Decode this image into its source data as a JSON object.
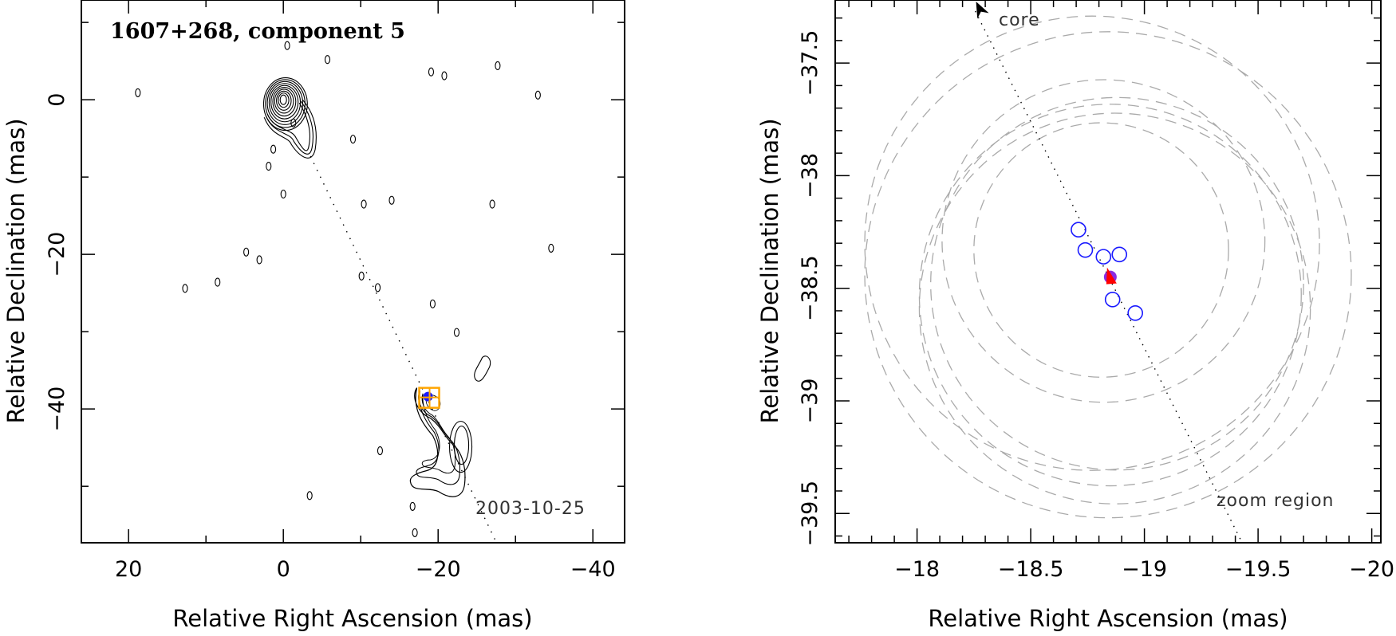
{
  "chart_data": [
    {
      "type": "contour",
      "title": "1607+268, component 5",
      "annotation": "2003-10-25",
      "xlabel": "Relative Right Ascension (mas)",
      "ylabel": "Relative Declination (mas)",
      "xlim": [
        26.1,
        -44.1
      ],
      "ylim": [
        -57.3,
        12.9
      ],
      "xticks": [
        20,
        0,
        -20,
        -40
      ],
      "xtick_labels": [
        "20",
        "0",
        "−20",
        "−40"
      ],
      "yticks": [
        0,
        -20,
        -40
      ],
      "ytick_labels": [
        "0",
        "−20",
        "−40"
      ],
      "minor_xticks": [
        10,
        -10,
        -30
      ],
      "minor_yticks": [
        10,
        -10,
        -30,
        -50
      ],
      "core": {
        "ra": 0,
        "dec": 0
      },
      "component": {
        "ra": -18.9,
        "dec": -38.5
      },
      "direction_line": {
        "from": [
          -3.5,
          -7.3
        ],
        "to": [
          -27.5,
          -57.2
        ]
      },
      "islands": [
        [
          -19.1,
          3.6
        ],
        [
          -27.7,
          4.4
        ],
        [
          -9.0,
          -5.1
        ],
        [
          -1.3,
          -3.0
        ],
        [
          -0.5,
          7.0
        ],
        [
          -5.7,
          5.2
        ],
        [
          -20.8,
          3.1
        ],
        [
          -32.9,
          0.6
        ],
        [
          18.8,
          0.9
        ],
        [
          1.3,
          -6.4
        ],
        [
          1.9,
          -8.6
        ],
        [
          0.0,
          -12.2
        ],
        [
          -10.4,
          -13.5
        ],
        [
          -14.0,
          -13.0
        ],
        [
          -27.0,
          -13.5
        ],
        [
          -34.6,
          -19.2
        ],
        [
          4.8,
          -19.7
        ],
        [
          3.1,
          -20.7
        ],
        [
          8.5,
          -23.6
        ],
        [
          12.7,
          -24.4
        ],
        [
          -10.1,
          -22.8
        ],
        [
          -12.2,
          -24.3
        ],
        [
          -19.3,
          -26.4
        ],
        [
          -22.4,
          -30.1
        ],
        [
          -12.5,
          -45.4
        ],
        [
          -3.4,
          -51.2
        ],
        [
          -16.7,
          -52.6
        ],
        [
          -17.0,
          -56.0
        ]
      ],
      "colors": {
        "contour": "#000000",
        "marker": "#1a1aff",
        "box": "#ffa500"
      }
    },
    {
      "type": "scatter",
      "xlabel": "Relative Right Ascension (mas)",
      "ylabel": "Relative Declination (mas)",
      "xlim": [
        -17.64,
        -20.04
      ],
      "ylim": [
        -39.63,
        -37.22
      ],
      "xticks": [
        -18,
        -18.5,
        -19,
        -19.5,
        -20
      ],
      "xtick_labels": [
        "−18",
        "−18.5",
        "−19",
        "−19.5",
        "−20"
      ],
      "yticks": [
        -37.5,
        -38,
        -38.5,
        -39,
        -39.5
      ],
      "ytick_labels": [
        "−37.5",
        "−38",
        "−38.5",
        "−39",
        "−39.5"
      ],
      "minor_step": 0.1,
      "core_label": "core",
      "zoom_label": "zoom region",
      "direction_line": {
        "from": [
          -18.256,
          -37.22
        ],
        "to": [
          -19.43,
          -39.63
        ]
      },
      "points": [
        {
          "ra": -18.71,
          "dec": -38.24
        },
        {
          "ra": -18.74,
          "dec": -38.33
        },
        {
          "ra": -18.82,
          "dec": -38.36
        },
        {
          "ra": -18.89,
          "dec": -38.35
        },
        {
          "ra": -18.86,
          "dec": -38.55
        },
        {
          "ra": -18.96,
          "dec": -38.61
        }
      ],
      "mean_point": {
        "ra": -18.85,
        "dec": -38.45
      },
      "uncertainty_circles": [
        {
          "ra": -18.81,
          "dec": -38.33,
          "r": 0.56
        },
        {
          "ra": -18.82,
          "dec": -38.29,
          "r": 0.71
        },
        {
          "ra": -18.88,
          "dec": -38.48,
          "r": 0.82
        },
        {
          "ra": -18.85,
          "dec": -38.53,
          "r": 0.84
        },
        {
          "ra": -18.87,
          "dec": -38.59,
          "r": 0.86
        },
        {
          "ra": -18.84,
          "dec": -38.44,
          "r": 1.07
        },
        {
          "ra": -18.77,
          "dec": -38.3,
          "r": 1.0
        }
      ],
      "colors": {
        "points": "#1a1aff",
        "mean": "#ff0000",
        "mean_fill": "#8a2be2",
        "circles": "#aaaaaa"
      }
    }
  ]
}
